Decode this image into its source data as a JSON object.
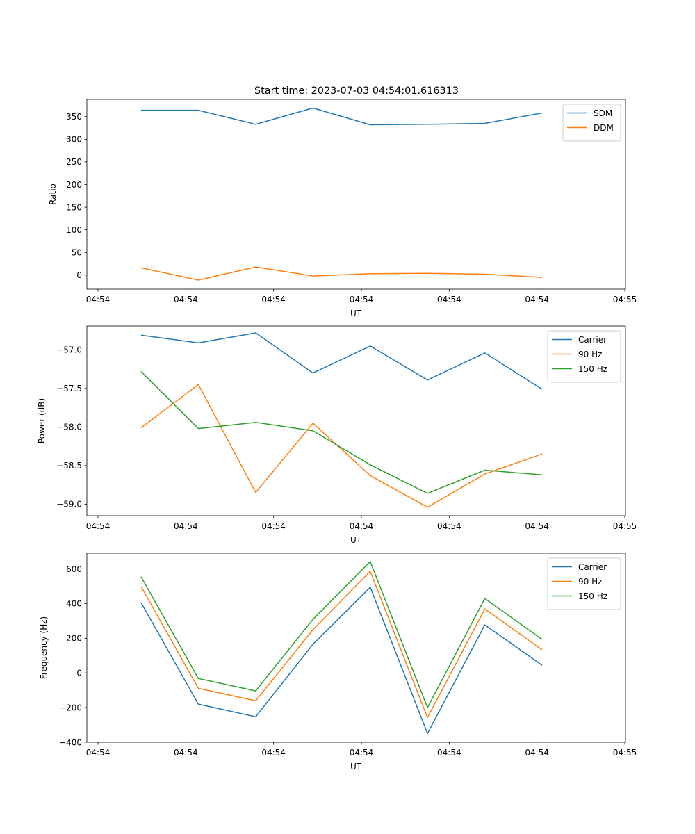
{
  "figure": {
    "title": "Start time: 2023-07-03 04:54:01.616313"
  },
  "chart_data": [
    {
      "type": "line",
      "title": "Start time: 2023-07-03 04:54:01.616313",
      "xlabel": "UT",
      "ylabel": "Ratio",
      "x_tick_labels": [
        "04:54",
        "04:54",
        "04:54",
        "04:54",
        "04:54",
        "04:54",
        "04:55"
      ],
      "y_ticks": [
        0,
        50,
        100,
        150,
        200,
        250,
        300,
        350
      ],
      "ylim": [
        -31,
        388
      ],
      "x": [
        1,
        2,
        3,
        4,
        5,
        6,
        7,
        8
      ],
      "xlim": [
        -0.2,
        9.3
      ],
      "x_tick_positions": [
        0,
        1.55,
        3.1,
        4.65,
        6.2,
        7.75,
        9.3
      ],
      "legend_position": "upper-right",
      "series": [
        {
          "name": "SDM",
          "color": "#1f77b4",
          "values": [
            364,
            364,
            333,
            369,
            332,
            333,
            335,
            358
          ]
        },
        {
          "name": "DDM",
          "color": "#ff7f0e",
          "values": [
            16,
            -11,
            18,
            -2,
            3,
            4,
            2,
            -5
          ]
        }
      ]
    },
    {
      "type": "line",
      "title": "",
      "xlabel": "UT",
      "ylabel": "Power (dB)",
      "x_tick_labels": [
        "04:54",
        "04:54",
        "04:54",
        "04:54",
        "04:54",
        "04:54",
        "04:55"
      ],
      "y_ticks": [
        -59.0,
        -58.5,
        -58.0,
        -57.5,
        -57.0
      ],
      "y_tick_labels": [
        "−59.0",
        "−58.5",
        "−58.0",
        "−57.5",
        "−57.0"
      ],
      "ylim": [
        -59.15,
        -56.69
      ],
      "x": [
        1,
        2,
        3,
        4,
        5,
        6,
        7,
        8
      ],
      "xlim": [
        -0.2,
        9.3
      ],
      "x_tick_positions": [
        0,
        1.55,
        3.1,
        4.65,
        6.2,
        7.75,
        9.3
      ],
      "legend_position": "upper-right",
      "series": [
        {
          "name": "Carrier",
          "color": "#1f77b4",
          "values": [
            -56.81,
            -56.91,
            -56.78,
            -57.3,
            -56.95,
            -57.39,
            -57.04,
            -57.51
          ]
        },
        {
          "name": "90 Hz",
          "color": "#ff7f0e",
          "values": [
            -58.01,
            -57.45,
            -58.85,
            -57.95,
            -58.63,
            -59.04,
            -58.61,
            -58.35
          ]
        },
        {
          "name": "150 Hz",
          "color": "#2ca02c",
          "values": [
            -57.28,
            -58.02,
            -57.94,
            -58.05,
            -58.49,
            -58.86,
            -58.56,
            -58.62
          ]
        }
      ]
    },
    {
      "type": "line",
      "title": "",
      "xlabel": "UT",
      "ylabel": "Frequency (Hz)",
      "x_tick_labels": [
        "04:54",
        "04:54",
        "04:54",
        "04:54",
        "04:54",
        "04:54",
        "04:55"
      ],
      "y_ticks": [
        -400,
        -200,
        0,
        200,
        600,
        400
      ],
      "y_tick_labels": [
        "−400",
        "−200",
        "0",
        "200",
        "600",
        "400"
      ],
      "ylim": [
        -400,
        690
      ],
      "x": [
        1,
        2,
        3,
        4,
        5,
        6,
        7,
        8
      ],
      "xlim": [
        -0.2,
        9.3
      ],
      "x_tick_positions": [
        0,
        1.55,
        3.1,
        4.65,
        6.2,
        7.75,
        9.3
      ],
      "legend_position": "upper-right",
      "series": [
        {
          "name": "Carrier",
          "color": "#1f77b4",
          "values": [
            405,
            -180,
            -253,
            165,
            494,
            -349,
            277,
            44
          ]
        },
        {
          "name": "90 Hz",
          "color": "#ff7f0e",
          "values": [
            498,
            -89,
            -161,
            249,
            586,
            -257,
            369,
            133
          ]
        },
        {
          "name": "150 Hz",
          "color": "#2ca02c",
          "values": [
            554,
            -32,
            -104,
            309,
            642,
            -200,
            429,
            193
          ]
        }
      ]
    }
  ]
}
